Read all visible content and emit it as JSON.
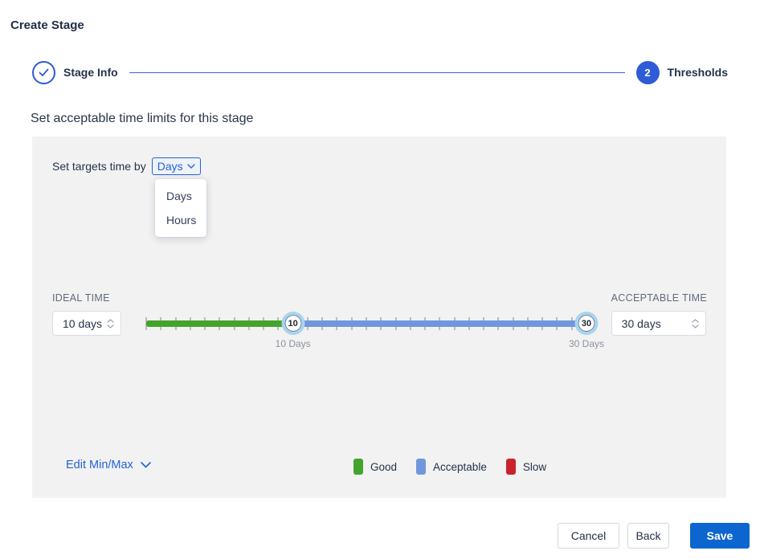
{
  "page": {
    "title": "Create Stage"
  },
  "stepper": {
    "steps": [
      {
        "label": "Stage Info",
        "state": "complete"
      },
      {
        "label": "Thresholds",
        "state": "active",
        "number": "2"
      }
    ]
  },
  "heading": "Set acceptable time limits for this stage",
  "panel": {
    "target_time_label": "Set targets time by",
    "unit_select": {
      "value": "Days",
      "options": [
        "Days",
        "Hours"
      ]
    },
    "ideal": {
      "label": "IDEAL TIME",
      "value": "10 days"
    },
    "acceptable": {
      "label": "ACCEPTABLE TIME",
      "value": "30 days"
    },
    "slider": {
      "min": 0,
      "max": 30,
      "tick_step": 1,
      "ideal_value": 10,
      "acceptable_value": 30,
      "ideal_handle": "10",
      "acceptable_handle": "30",
      "ideal_caption": "10 Days",
      "acceptable_caption": "30 Days"
    },
    "edit_minmax_label": "Edit Min/Max",
    "legend": [
      {
        "label": "Good",
        "color": "#44A32B"
      },
      {
        "label": "Acceptable",
        "color": "#7196DB"
      },
      {
        "label": "Slow",
        "color": "#C9212E"
      }
    ]
  },
  "footer": {
    "cancel": "Cancel",
    "back": "Back",
    "save": "Save"
  },
  "colors": {
    "accent_blue": "#2563d9",
    "step_blue": "#2f5cd6",
    "save_blue": "#0d66d0",
    "panel_bg": "#f2f2f2",
    "handle_ring": "#a8d4f0"
  }
}
